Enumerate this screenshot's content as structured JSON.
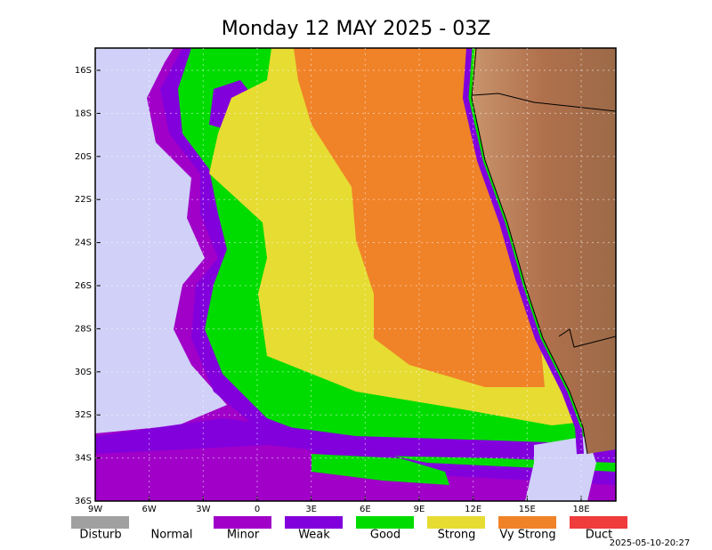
{
  "title": "Monday 12 MAY 2025 - 03Z",
  "latitude_labels": [
    "16S",
    "18S",
    "20S",
    "22S",
    "24S",
    "26S",
    "28S",
    "30S",
    "32S",
    "34S",
    "36S"
  ],
  "longitude_labels": [
    "9W",
    "6W",
    "3W",
    "0",
    "3E",
    "6E",
    "9E",
    "12E",
    "15E",
    "18E"
  ],
  "legend": [
    {
      "label": "Disturb",
      "color": "#a0a0a0"
    },
    {
      "label": "Normal",
      "color": "#ffffff"
    },
    {
      "label": "Minor",
      "color": "#a000c8"
    },
    {
      "label": "Weak",
      "color": "#8200dc"
    },
    {
      "label": "Good",
      "color": "#00dc00"
    },
    {
      "label": "Strong",
      "color": "#e6dc32"
    },
    {
      "label": "Vy Strong",
      "color": "#f08228"
    },
    {
      "label": "Duct",
      "color": "#f03c3c"
    }
  ],
  "timestamp": "2025-05-10-20:27"
}
